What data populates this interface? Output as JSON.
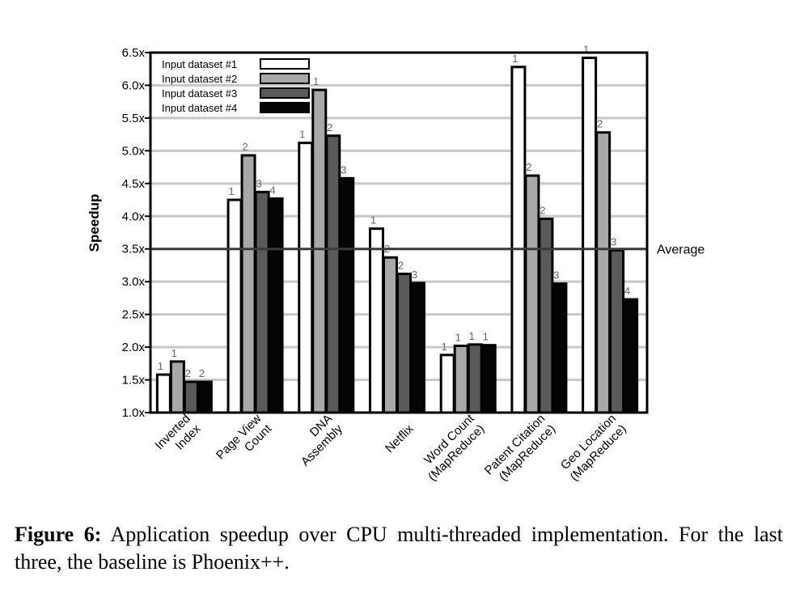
{
  "chart_data": {
    "type": "bar",
    "ylabel": "Speedup",
    "ylim": [
      1.0,
      6.5
    ],
    "yticks": [
      "1.0x",
      "1.5x",
      "2.0x",
      "2.5x",
      "3.0x",
      "3.5x",
      "4.0x",
      "4.5x",
      "5.0x",
      "5.5x",
      "6.0x",
      "6.5x"
    ],
    "grid": true,
    "legend_position": "top-left",
    "categories": [
      [
        "Inverted",
        "Index"
      ],
      [
        "Page View",
        "Count"
      ],
      [
        "DNA",
        "Assembly"
      ],
      [
        "Netflix"
      ],
      [
        "Word Count",
        "(MapReduce)"
      ],
      [
        "Patent Citation",
        "(MapReduce)"
      ],
      [
        "Geo Location",
        "(MapReduce)"
      ]
    ],
    "series": [
      {
        "name": "Input dataset #1",
        "color": "#ffffff",
        "values": [
          1.58,
          4.25,
          5.12,
          3.81,
          1.88,
          6.28,
          6.42
        ],
        "labels": [
          "1",
          "1",
          "1",
          "1",
          "1",
          "1",
          "1"
        ]
      },
      {
        "name": "Input dataset #2",
        "color": "#a8a8a8",
        "values": [
          1.78,
          4.93,
          5.93,
          3.37,
          2.02,
          4.62,
          5.28
        ],
        "labels": [
          "1",
          "2",
          "1",
          "2",
          "1",
          "2",
          "2"
        ]
      },
      {
        "name": "Input dataset #3",
        "color": "#5a5a5a",
        "values": [
          1.47,
          4.37,
          5.23,
          3.12,
          2.04,
          3.96,
          3.48
        ],
        "labels": [
          "2",
          "3",
          "2",
          "2",
          "1",
          "2",
          "3"
        ]
      },
      {
        "name": "Input dataset #4",
        "color": "#050505",
        "values": [
          1.47,
          4.27,
          4.58,
          2.98,
          2.03,
          2.97,
          2.73
        ],
        "labels": [
          "2",
          "4",
          "3",
          "3",
          "1",
          "3",
          "4"
        ]
      }
    ],
    "reference_line": {
      "value": 3.5,
      "label": "Average"
    }
  },
  "caption": {
    "figure_label": "Figure 6:",
    "text": " Application speedup over CPU multi-threaded implementation. For the last three, the baseline is Phoenix++."
  }
}
